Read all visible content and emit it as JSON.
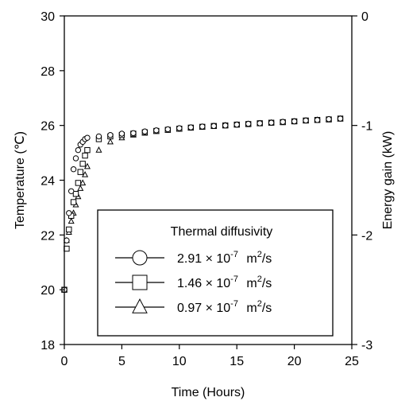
{
  "chart_data": {
    "type": "scatter",
    "xlabel": "Time (Hours)",
    "ylabel": "Temperature (℃)",
    "y2label": "Energy gain (kW)",
    "xlim": [
      0,
      25
    ],
    "ylim": [
      18,
      30
    ],
    "y2lim": [
      -3,
      0
    ],
    "x_ticks": [
      "0",
      "5",
      "10",
      "15",
      "20",
      "25"
    ],
    "y_ticks": [
      "18",
      "20",
      "22",
      "24",
      "26",
      "28",
      "30"
    ],
    "y2_ticks": [
      "-3",
      "-2",
      "-1",
      "0"
    ],
    "y2_tick_values": [
      -3,
      -2,
      -1,
      0
    ],
    "grid": false,
    "legend": {
      "title": "Thermal diffusivity",
      "position": "lower-right",
      "entries": [
        {
          "marker": "circle",
          "coef": "2.91",
          "times": "×",
          "base": "10",
          "exp": "-7",
          "unit": "m",
          "unit_exp": "2",
          "unit_tail": "/s"
        },
        {
          "marker": "square",
          "coef": "1.46",
          "times": "×",
          "base": "10",
          "exp": "-7",
          "unit": "m",
          "unit_exp": "2",
          "unit_tail": "/s"
        },
        {
          "marker": "triangle",
          "coef": "0.97",
          "times": "×",
          "base": "10",
          "exp": "-7",
          "unit": "m",
          "unit_exp": "2",
          "unit_tail": "/s"
        }
      ]
    },
    "series": [
      {
        "marker": "circle",
        "x": [
          0,
          0.2,
          0.4,
          0.6,
          0.8,
          1.0,
          1.2,
          1.4,
          1.6,
          1.8,
          2.0,
          3,
          4,
          5,
          6,
          7,
          8,
          9,
          10,
          11,
          12,
          13,
          14,
          15,
          16,
          17,
          18,
          19,
          20,
          21,
          22,
          23,
          24
        ],
        "y": [
          20.0,
          21.8,
          22.8,
          23.6,
          24.4,
          24.8,
          25.1,
          25.3,
          25.4,
          25.5,
          25.55,
          25.6,
          25.65,
          25.7,
          25.72,
          25.78,
          25.82,
          25.86,
          25.9,
          25.93,
          25.96,
          25.98,
          26.0,
          26.03,
          26.06,
          26.08,
          26.1,
          26.13,
          26.15,
          26.18,
          26.2,
          26.23,
          26.25
        ]
      },
      {
        "marker": "square",
        "x": [
          0,
          0.2,
          0.4,
          0.6,
          0.8,
          1.0,
          1.2,
          1.4,
          1.6,
          1.8,
          2.0,
          3,
          4,
          5,
          6,
          7,
          8,
          9,
          10,
          11,
          12,
          13,
          14,
          15,
          16,
          17,
          18,
          19,
          20,
          21,
          22,
          23,
          24
        ],
        "y": [
          20.0,
          21.5,
          22.2,
          22.7,
          23.2,
          23.5,
          23.9,
          24.3,
          24.6,
          24.9,
          25.1,
          25.5,
          25.6,
          25.65,
          25.7,
          25.75,
          25.8,
          25.84,
          25.88,
          25.92,
          25.95,
          25.98,
          26.0,
          26.03,
          26.05,
          26.08,
          26.1,
          26.12,
          26.15,
          26.18,
          26.2,
          26.22,
          26.25
        ]
      },
      {
        "marker": "triangle",
        "x": [
          0,
          0.2,
          0.4,
          0.6,
          0.8,
          1.0,
          1.2,
          1.4,
          1.6,
          1.8,
          2.0,
          3,
          4,
          5,
          6,
          7,
          8,
          9,
          10,
          11,
          12,
          13,
          14,
          15,
          16,
          17,
          18,
          19,
          20,
          21,
          22,
          23,
          24
        ],
        "y": [
          20.0,
          21.8,
          22.1,
          22.5,
          22.8,
          23.1,
          23.4,
          23.7,
          23.9,
          24.2,
          24.5,
          25.1,
          25.4,
          25.55,
          25.65,
          25.72,
          25.78,
          25.83,
          25.87,
          25.91,
          25.94,
          25.97,
          26.0,
          26.02,
          26.05,
          26.07,
          26.1,
          26.12,
          26.14,
          26.17,
          26.2,
          26.22,
          26.24
        ]
      }
    ]
  }
}
